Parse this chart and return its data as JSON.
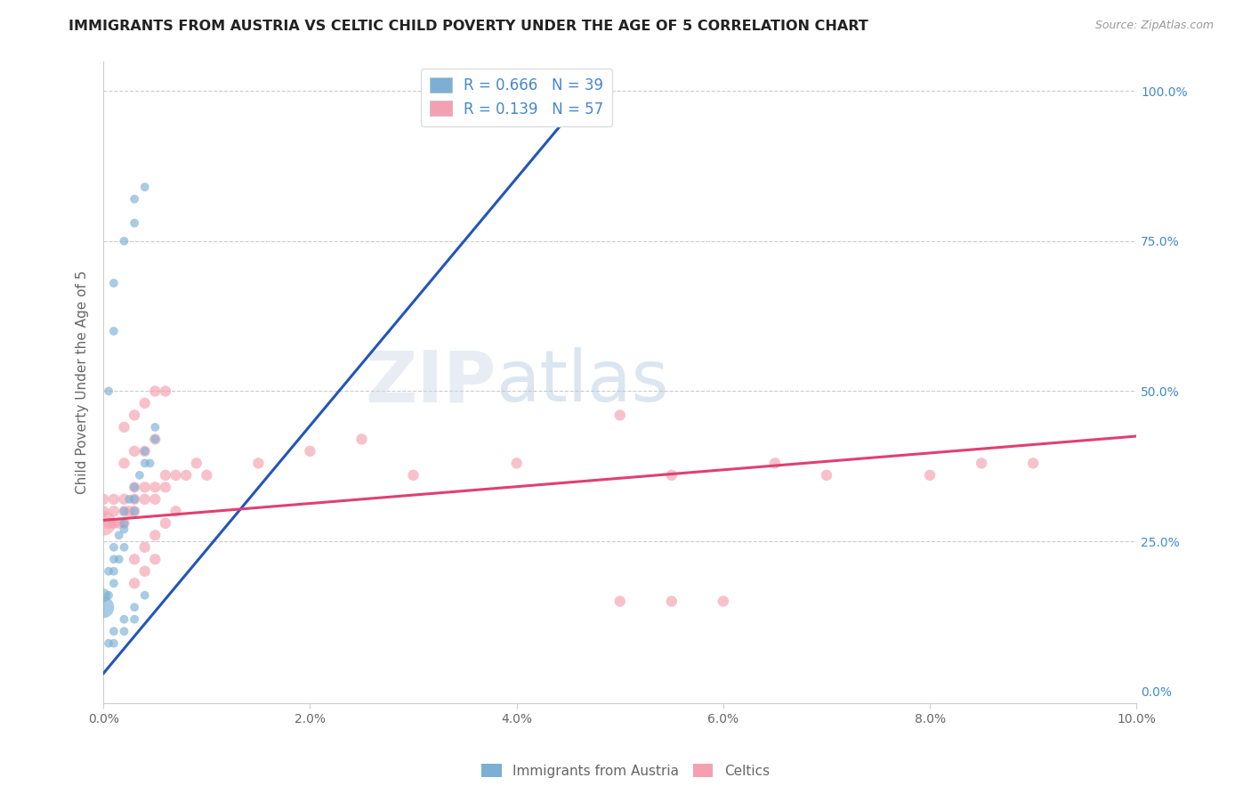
{
  "title": "IMMIGRANTS FROM AUSTRIA VS CELTIC CHILD POVERTY UNDER THE AGE OF 5 CORRELATION CHART",
  "source": "Source: ZipAtlas.com",
  "xlabel_bottom": "Immigrants from Austria",
  "ylabel": "Child Poverty Under the Age of 5",
  "xlim": [
    0.0,
    0.1
  ],
  "ylim": [
    -0.02,
    1.05
  ],
  "xtick_vals": [
    0.0,
    0.02,
    0.04,
    0.06,
    0.08,
    0.1
  ],
  "xtick_labels": [
    "0.0%",
    "2.0%",
    "4.0%",
    "6.0%",
    "8.0%",
    "10.0%"
  ],
  "ytick_vals": [
    0.0,
    0.25,
    0.5,
    0.75,
    1.0
  ],
  "ytick_labels_right": [
    "0.0%",
    "25.0%",
    "50.0%",
    "75.0%",
    "100.0%"
  ],
  "grid_color": "#cccccc",
  "background_color": "#ffffff",
  "legend_R1": "R = 0.666",
  "legend_N1": "N = 39",
  "legend_R2": "R = 0.139",
  "legend_N2": "N = 57",
  "blue_color": "#7bafd4",
  "pink_color": "#f4a0b0",
  "blue_line_color": "#2255bb",
  "pink_line_color": "#e04070",
  "title_color": "#222222",
  "axis_label_color": "#666666",
  "right_tick_color": "#4488cc",
  "blue_line_x": [
    0.0,
    0.048
  ],
  "blue_line_y": [
    0.03,
    1.02
  ],
  "pink_line_x": [
    0.0,
    0.1
  ],
  "pink_line_y": [
    0.285,
    0.425
  ],
  "austria_x": [
    0.0005,
    0.001,
    0.001,
    0.0015,
    0.002,
    0.002,
    0.002,
    0.0025,
    0.003,
    0.003,
    0.003,
    0.0035,
    0.004,
    0.004,
    0.0045,
    0.005,
    0.005,
    0.0,
    0.0,
    0.0005,
    0.001,
    0.001,
    0.0015,
    0.002,
    0.0005,
    0.001,
    0.001,
    0.002,
    0.003,
    0.003,
    0.004,
    0.001,
    0.002,
    0.003,
    0.004,
    0.0005,
    0.001,
    0.002,
    0.003
  ],
  "austria_y": [
    0.2,
    0.22,
    0.24,
    0.26,
    0.27,
    0.28,
    0.3,
    0.32,
    0.3,
    0.32,
    0.34,
    0.36,
    0.38,
    0.4,
    0.38,
    0.42,
    0.44,
    0.14,
    0.16,
    0.16,
    0.18,
    0.2,
    0.22,
    0.24,
    0.5,
    0.6,
    0.68,
    0.75,
    0.78,
    0.82,
    0.84,
    0.1,
    0.12,
    0.14,
    0.16,
    0.08,
    0.08,
    0.1,
    0.12
  ],
  "austria_sizes": [
    50,
    50,
    50,
    50,
    50,
    50,
    50,
    50,
    50,
    50,
    50,
    50,
    50,
    50,
    50,
    50,
    50,
    300,
    120,
    50,
    50,
    50,
    50,
    50,
    50,
    50,
    50,
    50,
    50,
    50,
    50,
    50,
    50,
    50,
    50,
    50,
    50,
    50,
    50
  ],
  "celtic_x": [
    0.0,
    0.0,
    0.0,
    0.0005,
    0.001,
    0.001,
    0.001,
    0.0015,
    0.002,
    0.002,
    0.002,
    0.0025,
    0.003,
    0.003,
    0.003,
    0.004,
    0.004,
    0.005,
    0.005,
    0.006,
    0.006,
    0.007,
    0.008,
    0.009,
    0.002,
    0.003,
    0.004,
    0.005,
    0.002,
    0.003,
    0.004,
    0.005,
    0.006,
    0.01,
    0.015,
    0.02,
    0.025,
    0.03,
    0.04,
    0.05,
    0.055,
    0.065,
    0.07,
    0.08,
    0.085,
    0.09,
    0.003,
    0.004,
    0.005,
    0.05,
    0.055,
    0.06,
    0.003,
    0.004,
    0.005,
    0.006,
    0.007
  ],
  "celtic_y": [
    0.28,
    0.3,
    0.32,
    0.28,
    0.28,
    0.3,
    0.32,
    0.28,
    0.28,
    0.3,
    0.32,
    0.3,
    0.3,
    0.32,
    0.34,
    0.32,
    0.34,
    0.32,
    0.34,
    0.34,
    0.36,
    0.36,
    0.36,
    0.38,
    0.38,
    0.4,
    0.4,
    0.42,
    0.44,
    0.46,
    0.48,
    0.5,
    0.5,
    0.36,
    0.38,
    0.4,
    0.42,
    0.36,
    0.38,
    0.46,
    0.36,
    0.38,
    0.36,
    0.36,
    0.38,
    0.38,
    0.18,
    0.2,
    0.22,
    0.15,
    0.15,
    0.15,
    0.22,
    0.24,
    0.26,
    0.28,
    0.3
  ],
  "celtic_sizes": [
    400,
    80,
    80,
    80,
    80,
    80,
    80,
    80,
    80,
    80,
    80,
    80,
    80,
    80,
    80,
    80,
    80,
    80,
    80,
    80,
    80,
    80,
    80,
    80,
    80,
    80,
    80,
    80,
    80,
    80,
    80,
    80,
    80,
    80,
    80,
    80,
    80,
    80,
    80,
    80,
    80,
    80,
    80,
    80,
    80,
    80,
    80,
    80,
    80,
    80,
    80,
    80,
    80,
    80,
    80,
    80,
    80
  ]
}
